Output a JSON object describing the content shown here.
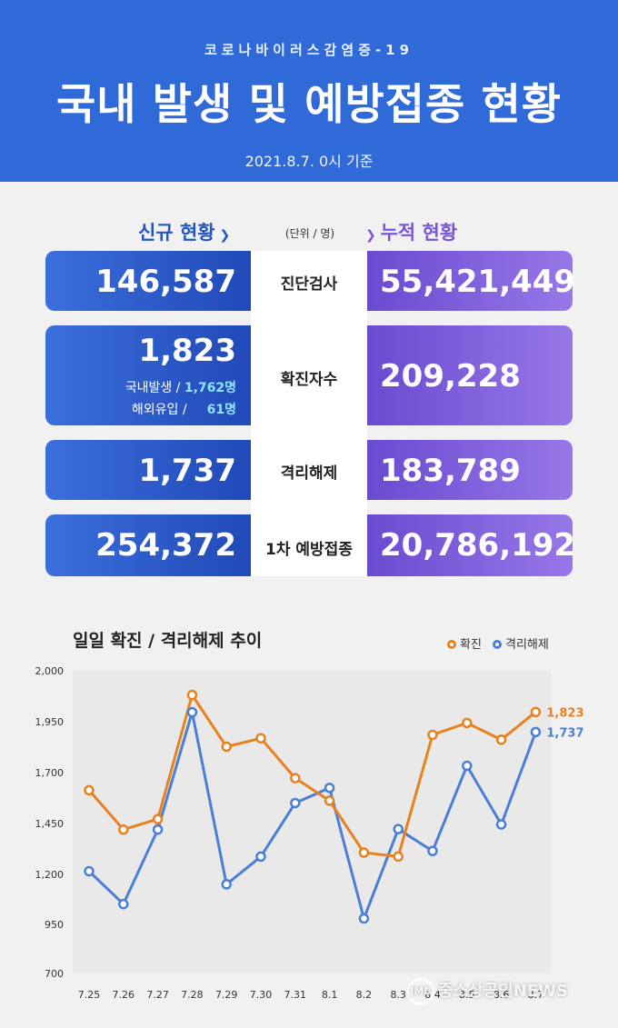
{
  "header": {
    "subtitle": "코로나바이러스감염증-19",
    "title": "국내 발생 및 예방접종 현황",
    "date": "2021.8.7. 0시 기준"
  },
  "columns": {
    "new_label": "신규 현황",
    "cumulative_label": "누적 현황",
    "unit": "(단위 / 명)",
    "new_chevron": "chevron-down-icon",
    "cumulative_chevron": "chevron-down-icon"
  },
  "rows": [
    {
      "label": "진단검사",
      "new": "146,587",
      "cumulative": "55,421,449"
    },
    {
      "label": "확진자수",
      "new": "1,823",
      "cumulative": "209,228",
      "domestic_label": "국내발생 /",
      "domestic_value": "1,762명",
      "overseas_label": "해외유입 /",
      "overseas_value": "61명"
    },
    {
      "label": "격리해제",
      "new": "1,737",
      "cumulative": "183,789"
    },
    {
      "label": "1차 예방접종",
      "new": "254,372",
      "cumulative": "20,786,192"
    }
  ],
  "chart_data": {
    "type": "line",
    "title": "일일 확진 / 격리해제 추이",
    "categories": [
      "7.25",
      "7.26",
      "7.27",
      "7.28",
      "7.29",
      "7.30",
      "7.31",
      "8.1",
      "8.2",
      "8.3",
      "8.4",
      "8.5",
      "8.6",
      "8.7"
    ],
    "series": [
      {
        "name": "확진",
        "color": "#e8821f",
        "values": [
          1487,
          1318,
          1363,
          1896,
          1674,
          1710,
          1539,
          1442,
          1219,
          1202,
          1725,
          1776,
          1704,
          1823
        ]
      },
      {
        "name": "격리해제",
        "color": "#4a7fd4",
        "values": [
          1139,
          998,
          1318,
          1822,
          1083,
          1202,
          1432,
          1497,
          936,
          1320,
          1226,
          1592,
          1340,
          1737
        ]
      }
    ],
    "yticks": [
      "2,000",
      "1,950",
      "1,700",
      "1,450",
      "1,200",
      "950",
      "700"
    ],
    "end_labels": [
      "1,823",
      "1,737"
    ],
    "ylim": [
      700,
      2000
    ],
    "grid": false,
    "legend": "top-right"
  },
  "watermark": {
    "logo": "JMB",
    "text": "중소상공인NEWS"
  }
}
